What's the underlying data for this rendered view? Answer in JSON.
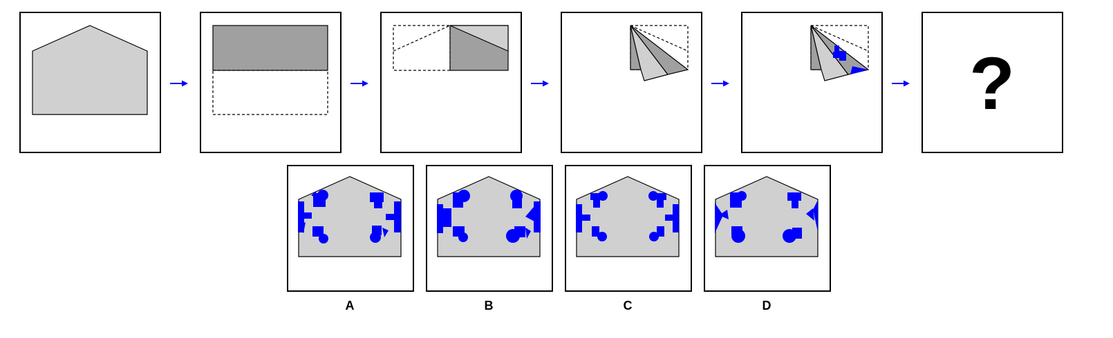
{
  "puzzle": {
    "question_mark": "?",
    "choices": [
      {
        "label": "A"
      },
      {
        "label": "B"
      },
      {
        "label": "C"
      },
      {
        "label": "D"
      }
    ]
  },
  "colors": {
    "paper_light": "#d0d0d0",
    "paper_dark": "#a0a0a0",
    "cutout": "#0000ff",
    "arrow": "#0000ff",
    "frame": "#000000"
  }
}
